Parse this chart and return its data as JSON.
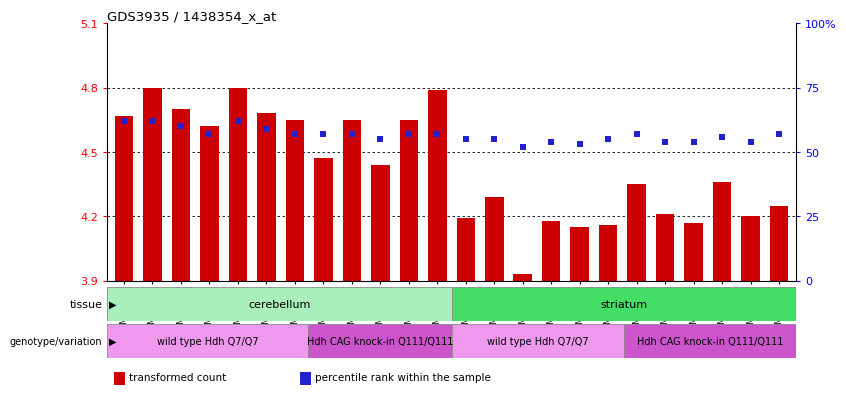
{
  "title": "GDS3935 / 1438354_x_at",
  "samples": [
    "GSM229450",
    "GSM229451",
    "GSM229452",
    "GSM229456",
    "GSM229457",
    "GSM229458",
    "GSM229453",
    "GSM229454",
    "GSM229455",
    "GSM229459",
    "GSM229460",
    "GSM229461",
    "GSM229429",
    "GSM229430",
    "GSM229431",
    "GSM229435",
    "GSM229436",
    "GSM229437",
    "GSM229432",
    "GSM229433",
    "GSM229434",
    "GSM229438",
    "GSM229439",
    "GSM229440"
  ],
  "bar_values": [
    4.67,
    4.8,
    4.7,
    4.62,
    4.8,
    4.68,
    4.65,
    4.47,
    4.65,
    4.44,
    4.65,
    4.79,
    4.19,
    4.29,
    3.93,
    4.18,
    4.15,
    4.16,
    4.35,
    4.21,
    4.17,
    4.36,
    4.2,
    4.25
  ],
  "dot_values": [
    62,
    62,
    60,
    57,
    62,
    59,
    57,
    57,
    57,
    55,
    57,
    57,
    55,
    55,
    52,
    54,
    53,
    55,
    57,
    54,
    54,
    56,
    54,
    57
  ],
  "ylim_left": [
    3.9,
    5.1
  ],
  "ylim_right": [
    0,
    100
  ],
  "bar_color": "#cc0000",
  "dot_color": "#2222cc",
  "bar_bottom": 3.9,
  "tissue_groups": [
    {
      "label": "cerebellum",
      "start": 0,
      "end": 12,
      "color": "#aaeebb"
    },
    {
      "label": "striatum",
      "start": 12,
      "end": 24,
      "color": "#44dd66"
    }
  ],
  "genotype_groups": [
    {
      "label": "wild type Hdh Q7/Q7",
      "start": 0,
      "end": 7,
      "color": "#ee99ee"
    },
    {
      "label": "Hdh CAG knock-in Q111/Q111",
      "start": 7,
      "end": 12,
      "color": "#cc55cc"
    },
    {
      "label": "wild type Hdh Q7/Q7",
      "start": 12,
      "end": 18,
      "color": "#ee99ee"
    },
    {
      "label": "Hdh CAG knock-in Q111/Q111",
      "start": 18,
      "end": 24,
      "color": "#cc55cc"
    }
  ],
  "yticks_left": [
    3.9,
    4.2,
    4.5,
    4.8,
    5.1
  ],
  "yticks_right": [
    0,
    25,
    50,
    75,
    100
  ],
  "grid_values": [
    4.2,
    4.5,
    4.8
  ],
  "legend_items": [
    {
      "label": "transformed count",
      "color": "#cc0000"
    },
    {
      "label": "percentile rank within the sample",
      "color": "#2222cc"
    }
  ]
}
